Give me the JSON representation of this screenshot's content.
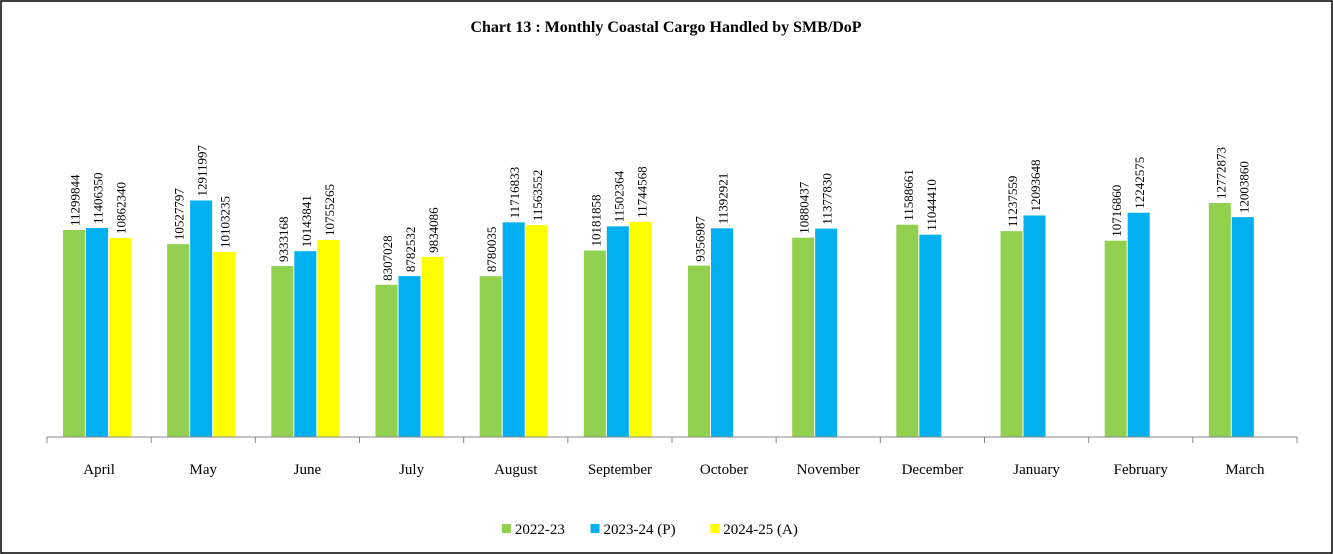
{
  "chart_data": {
    "type": "bar",
    "title": "Chart 13 : Monthly Coastal Cargo Handled by SMB/DoP",
    "categories": [
      "April",
      "May",
      "June",
      "July",
      "August",
      "September",
      "October",
      "November",
      "December",
      "January",
      "February",
      "March"
    ],
    "series": [
      {
        "name": "2022-23",
        "color": "#92d050",
        "values": [
          11299844,
          10527797,
          9333168,
          8307028,
          8780035,
          10181858,
          9356987,
          10880437,
          11588661,
          11237559,
          10716860,
          12772873
        ]
      },
      {
        "name": "2023-24 (P)",
        "color": "#00b0f0",
        "values": [
          11406350,
          12911997,
          10143841,
          8782532,
          11716833,
          11502364,
          11392921,
          11377830,
          11044410,
          12093648,
          12242575,
          12003860
        ]
      },
      {
        "name": "2024-25 (A)",
        "color": "#ffff00",
        "values": [
          10862340,
          10103235,
          10755265,
          9834086,
          11563552,
          11744568,
          null,
          null,
          null,
          null,
          null,
          null
        ]
      }
    ],
    "ylim": [
      0,
      22000000
    ],
    "legend": "bottom"
  }
}
